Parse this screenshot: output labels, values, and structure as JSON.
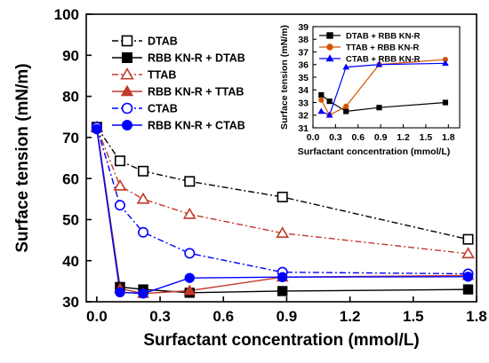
{
  "chart_data": [
    {
      "type": "line",
      "xlabel": "Surfactant concentration (mmol/L)",
      "ylabel": "Surface tension (mN/m)",
      "xlim": [
        -0.05,
        1.8
      ],
      "ylim": [
        30,
        100
      ],
      "xticks": [
        "0.0",
        "0.3",
        "0.6",
        "0.9",
        "1.2",
        "1.5",
        "1.8"
      ],
      "yticks": [
        "30",
        "40",
        "50",
        "60",
        "70",
        "80",
        "90",
        "100"
      ],
      "legend_position": "top-left",
      "series": [
        {
          "name": "DTAB",
          "color": "#000000",
          "marker": "square-open",
          "line": "dash-dot",
          "x": [
            0,
            0.11,
            0.22,
            0.44,
            0.88,
            1.76
          ],
          "y": [
            72.5,
            64.3,
            61.8,
            59.3,
            55.5,
            45.2
          ]
        },
        {
          "name": "RBB KN-R + DTAB",
          "color": "#000000",
          "marker": "square-filled",
          "line": "solid",
          "x": [
            0,
            0.11,
            0.22,
            0.44,
            0.88,
            1.76
          ],
          "y": [
            72.5,
            33.6,
            33.0,
            32.2,
            32.6,
            33.0
          ]
        },
        {
          "name": "TTAB",
          "color": "#c0392b",
          "marker": "triangle-open",
          "line": "dash-dot",
          "x": [
            0,
            0.11,
            0.22,
            0.44,
            0.88,
            1.76
          ],
          "y": [
            72.5,
            58.2,
            55.0,
            51.3,
            46.7,
            41.7
          ]
        },
        {
          "name": "RBB KN-R + TTAB",
          "color": "#c0392b",
          "marker": "triangle-filled",
          "line": "solid",
          "x": [
            0,
            0.11,
            0.22,
            0.44,
            0.88,
            1.76
          ],
          "y": [
            72.5,
            33.2,
            32.0,
            32.7,
            36.0,
            36.4
          ]
        },
        {
          "name": "CTAB",
          "color": "#0000ff",
          "marker": "circle-open",
          "line": "dash-dot",
          "x": [
            0,
            0.11,
            0.22,
            0.44,
            0.88,
            1.76
          ],
          "y": [
            72.5,
            53.5,
            46.9,
            41.8,
            37.2,
            36.8
          ]
        },
        {
          "name": "RBB KN-R + CTAB",
          "color": "#0000ff",
          "marker": "circle-filled",
          "line": "solid",
          "x": [
            0,
            0.11,
            0.22,
            0.44,
            0.88,
            1.76
          ],
          "y": [
            72.0,
            32.3,
            32.0,
            35.8,
            36.0,
            36.1
          ]
        }
      ]
    },
    {
      "type": "line",
      "xlabel": "Surfactant concentration (mmol/L)",
      "ylabel": "Surface tension (mN/m)",
      "xlim": [
        0,
        1.95
      ],
      "ylim": [
        31,
        39
      ],
      "xticks": [
        "0.0",
        "0.3",
        "0.6",
        "0.9",
        "1.2",
        "1.5",
        "1.8"
      ],
      "yticks": [
        "31",
        "32",
        "33",
        "34",
        "35",
        "36",
        "37",
        "38",
        "39"
      ],
      "legend_position": "top-left",
      "series": [
        {
          "name": "DTAB + RBB KN-R",
          "color": "#000000",
          "marker": "square-filled",
          "x": [
            0.11,
            0.22,
            0.44,
            0.88,
            1.76
          ],
          "y": [
            33.6,
            33.1,
            32.3,
            32.6,
            33.0
          ]
        },
        {
          "name": "TTAB + RBB KN-R",
          "color": "#d35400",
          "marker": "circle-filled",
          "x": [
            0.11,
            0.22,
            0.44,
            0.88,
            1.76
          ],
          "y": [
            33.2,
            32.0,
            32.7,
            36.0,
            36.4
          ]
        },
        {
          "name": "CTAB + RBB KN-R",
          "color": "#0000ff",
          "marker": "triangle-filled",
          "x": [
            0.11,
            0.22,
            0.44,
            0.88,
            1.76
          ],
          "y": [
            32.3,
            32.0,
            35.8,
            36.0,
            36.1
          ]
        }
      ]
    }
  ]
}
